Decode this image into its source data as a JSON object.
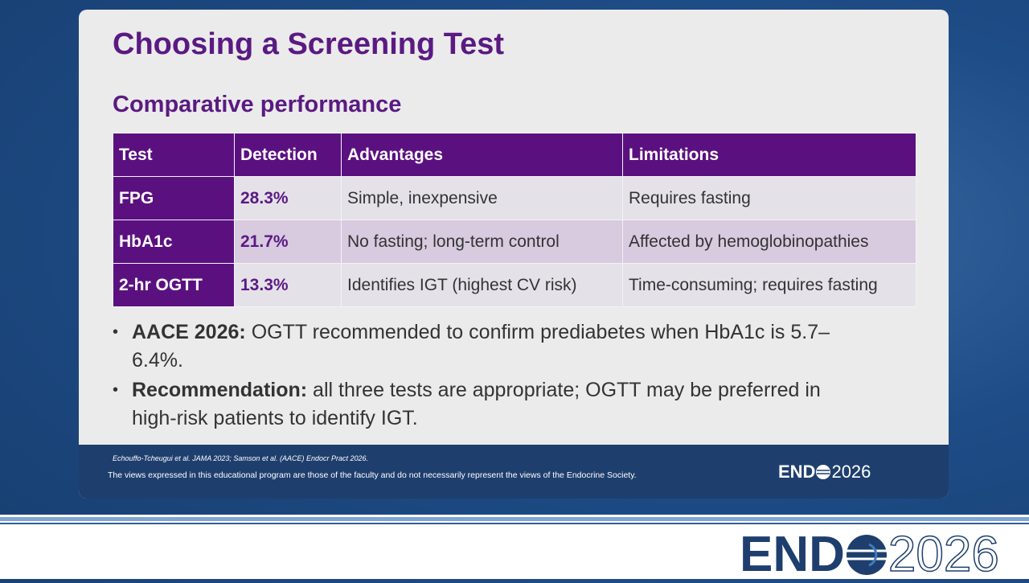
{
  "slide": {
    "title": "Choosing a Screening Test",
    "subtitle": "Comparative performance",
    "table": {
      "header": [
        "Test",
        "Detection",
        "Advantages",
        "Limitations"
      ],
      "rows": [
        [
          "FPG",
          "28.3%",
          "Simple, inexpensive",
          "Requires fasting"
        ],
        [
          "HbA1c",
          "21.7%",
          "No fasting; long-term control",
          "Affected by hemoglobinopathies"
        ],
        [
          "2-hr OGTT",
          "13.3%",
          "Identifies IGT (highest CV risk)",
          "Time-consuming; requires fasting"
        ]
      ]
    },
    "bullets": [
      {
        "lead": "AACE 2026:",
        "text": "OGTT recommended to confirm prediabetes when HbA1c is 5.7–6.4%."
      },
      {
        "lead": "Recommendation:",
        "text": "all three tests are appropriate; OGTT may be preferred in high-risk patients to identify IGT."
      }
    ],
    "citation": "Echouffo-Tcheugui et al. JAMA 2023; Samson et al. (AACE) Endocr Pract 2026.",
    "disclaimer": "The views expressed in this educational program are those of the faculty and do not necessarily represent the views of the Endocrine Society.",
    "logo": {
      "left": "END",
      "right": "2026"
    }
  }
}
